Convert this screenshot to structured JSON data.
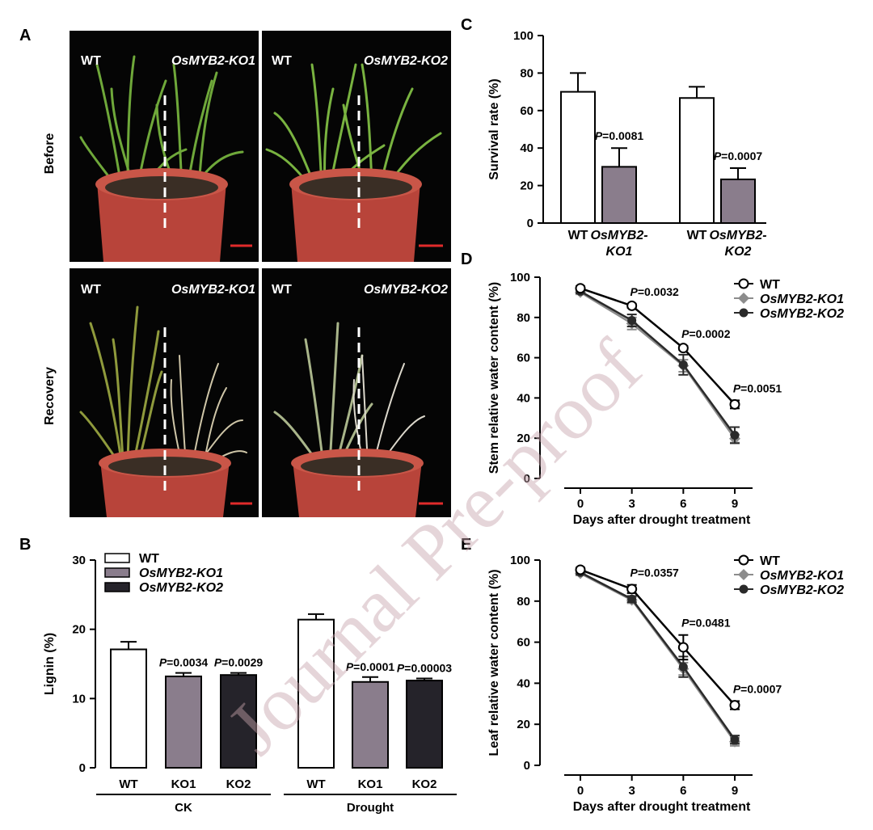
{
  "panel_labels": {
    "A": "A",
    "B": "B",
    "C": "C",
    "D": "D",
    "E": "E"
  },
  "panel_a": {
    "row_labels": [
      "Before",
      "Recovery"
    ],
    "photos": [
      {
        "left_label": "WT",
        "right_label": "OsMYB2-KO1",
        "condition": "before",
        "pot_color": "#b8443a"
      },
      {
        "left_label": "WT",
        "right_label": "OsMYB2-KO2",
        "condition": "before",
        "pot_color": "#b8443a"
      },
      {
        "left_label": "WT",
        "right_label": "OsMYB2-KO1",
        "condition": "recovery",
        "pot_color": "#b8443a"
      },
      {
        "left_label": "WT",
        "right_label": "OsMYB2-KO2",
        "condition": "recovery",
        "pot_color": "#b8443a"
      }
    ]
  },
  "watermark": "Journal Pre-proof",
  "chart_data": [
    {
      "panel": "B",
      "type": "bar",
      "ylabel": "Lignin (%)",
      "ylim": [
        0,
        30
      ],
      "yticks": [
        0,
        10,
        20,
        30
      ],
      "groups": [
        {
          "name": "CK",
          "categories": [
            "WT",
            "KO1",
            "KO2"
          ],
          "values": [
            17.1,
            13.2,
            13.4
          ],
          "errors": [
            1.1,
            0.5,
            0.3
          ],
          "annotations": [
            "",
            "P=0.0034",
            "P=0.0029"
          ]
        },
        {
          "name": "Drought",
          "categories": [
            "WT",
            "KO1",
            "KO2"
          ],
          "values": [
            21.4,
            12.4,
            12.6
          ],
          "errors": [
            0.8,
            0.7,
            0.3
          ],
          "annotations": [
            "",
            "P=0.0001",
            "P=0.00003"
          ]
        }
      ],
      "legend": [
        {
          "name": "WT",
          "color": "#ffffff"
        },
        {
          "name": "OsMYB2-KO1",
          "color": "#8a7d8c"
        },
        {
          "name": "OsMYB2-KO2",
          "color": "#25232a"
        }
      ],
      "legend_position": "top-left"
    },
    {
      "panel": "C",
      "type": "bar",
      "ylabel": "Survival rate (%)",
      "ylim": [
        0,
        100
      ],
      "yticks": [
        0,
        20,
        40,
        60,
        80,
        100
      ],
      "groups": [
        {
          "categories": [
            "WT",
            "OsMYB2-KO1"
          ],
          "values": [
            70,
            30
          ],
          "errors": [
            10,
            10
          ],
          "annotations": [
            "",
            "P=0.0081"
          ]
        },
        {
          "categories": [
            "WT",
            "OsMYB2-KO2"
          ],
          "values": [
            66.7,
            23.3
          ],
          "errors": [
            6,
            6
          ],
          "annotations": [
            "",
            "P=0.0007"
          ]
        }
      ],
      "colors": {
        "WT": "#ffffff",
        "KO": "#8a7d8c"
      }
    },
    {
      "panel": "D",
      "type": "line",
      "xlabel": "Days after drought treatment",
      "ylabel": "Stem relative water content (%)",
      "x": [
        0,
        3,
        6,
        9
      ],
      "ylim": [
        0,
        100
      ],
      "yticks": [
        0,
        20,
        40,
        60,
        80,
        100
      ],
      "series": [
        {
          "name": "WT",
          "values": [
            94.5,
            85.8,
            64.8,
            36.8
          ],
          "errors": [
            1,
            1,
            1,
            2
          ],
          "color": "#000000",
          "marker": "open-circle"
        },
        {
          "name": "OsMYB2-KO1",
          "values": [
            92.5,
            77.0,
            56.0,
            19.8
          ],
          "errors": [
            1,
            3,
            3,
            2
          ],
          "color": "#8c8c8c",
          "marker": "diamond"
        },
        {
          "name": "OsMYB2-KO2",
          "values": [
            93.0,
            78.5,
            56.5,
            21.5
          ],
          "errors": [
            1,
            3,
            5,
            4
          ],
          "color": "#2a2a2a",
          "marker": "filled-circle"
        }
      ],
      "annotations": [
        {
          "x": 3,
          "text": "P=0.0032"
        },
        {
          "x": 6,
          "text": "P=0.0002"
        },
        {
          "x": 9,
          "text": "P=0.0051"
        }
      ],
      "legend_position": "top-right"
    },
    {
      "panel": "E",
      "type": "line",
      "xlabel": "Days after drought treatment",
      "ylabel": "Leaf relative water content (%)",
      "x": [
        0,
        3,
        6,
        9
      ],
      "ylim": [
        0,
        100
      ],
      "yticks": [
        0,
        20,
        40,
        60,
        80,
        100
      ],
      "series": [
        {
          "name": "WT",
          "values": [
            95.3,
            85.9,
            57.5,
            29.3
          ],
          "errors": [
            1,
            2,
            6,
            2
          ],
          "color": "#000000",
          "marker": "open-circle"
        },
        {
          "name": "OsMYB2-KO1",
          "values": [
            93.5,
            80.5,
            47.0,
            11.5
          ],
          "errors": [
            1,
            1.5,
            3,
            2
          ],
          "color": "#8c8c8c",
          "marker": "diamond"
        },
        {
          "name": "OsMYB2-KO2",
          "values": [
            94.0,
            81.0,
            48.0,
            12.5
          ],
          "errors": [
            1,
            1.5,
            5,
            2
          ],
          "color": "#2a2a2a",
          "marker": "filled-circle"
        }
      ],
      "annotations": [
        {
          "x": 3,
          "text": "P=0.0357"
        },
        {
          "x": 6,
          "text": "P=0.0481"
        },
        {
          "x": 9,
          "text": "P=0.0007"
        }
      ],
      "legend_position": "top-right"
    }
  ]
}
